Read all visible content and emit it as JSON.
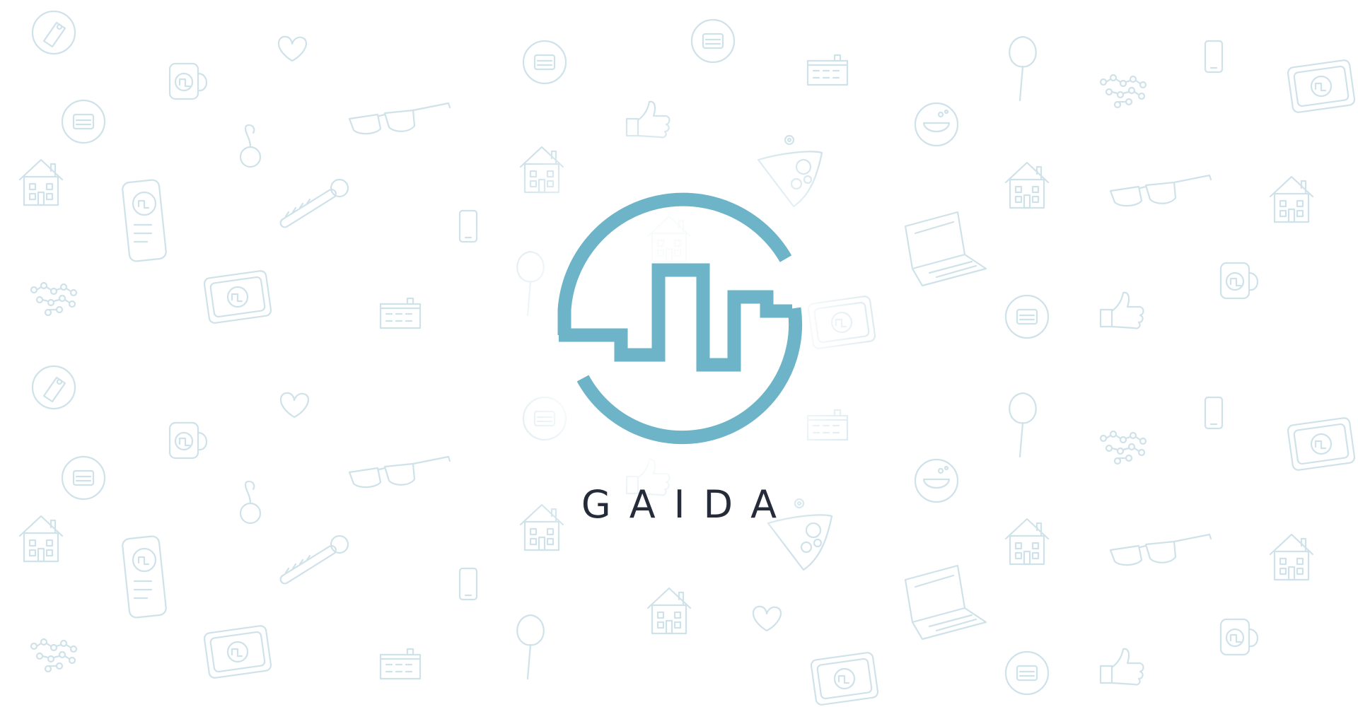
{
  "brand": {
    "name": "GAIDA",
    "logo_color": "#6eb4c8",
    "text_color": "#262b3a"
  },
  "background": {
    "color": "#ffffff",
    "doodle_color": "#cfe2ea",
    "doodle_icons": [
      "tag-icon",
      "heart-icon",
      "mug-icon",
      "badge-icon",
      "sunglasses-icon",
      "thumbs-up-icon",
      "building-icon",
      "tree-icon",
      "smartphone-icon",
      "molecule-icon",
      "card-icon",
      "house-icon",
      "cherry-icon",
      "laptop-icon",
      "phone-app-icon",
      "whistle-icon",
      "cake-icon",
      "bowl-icon"
    ]
  }
}
